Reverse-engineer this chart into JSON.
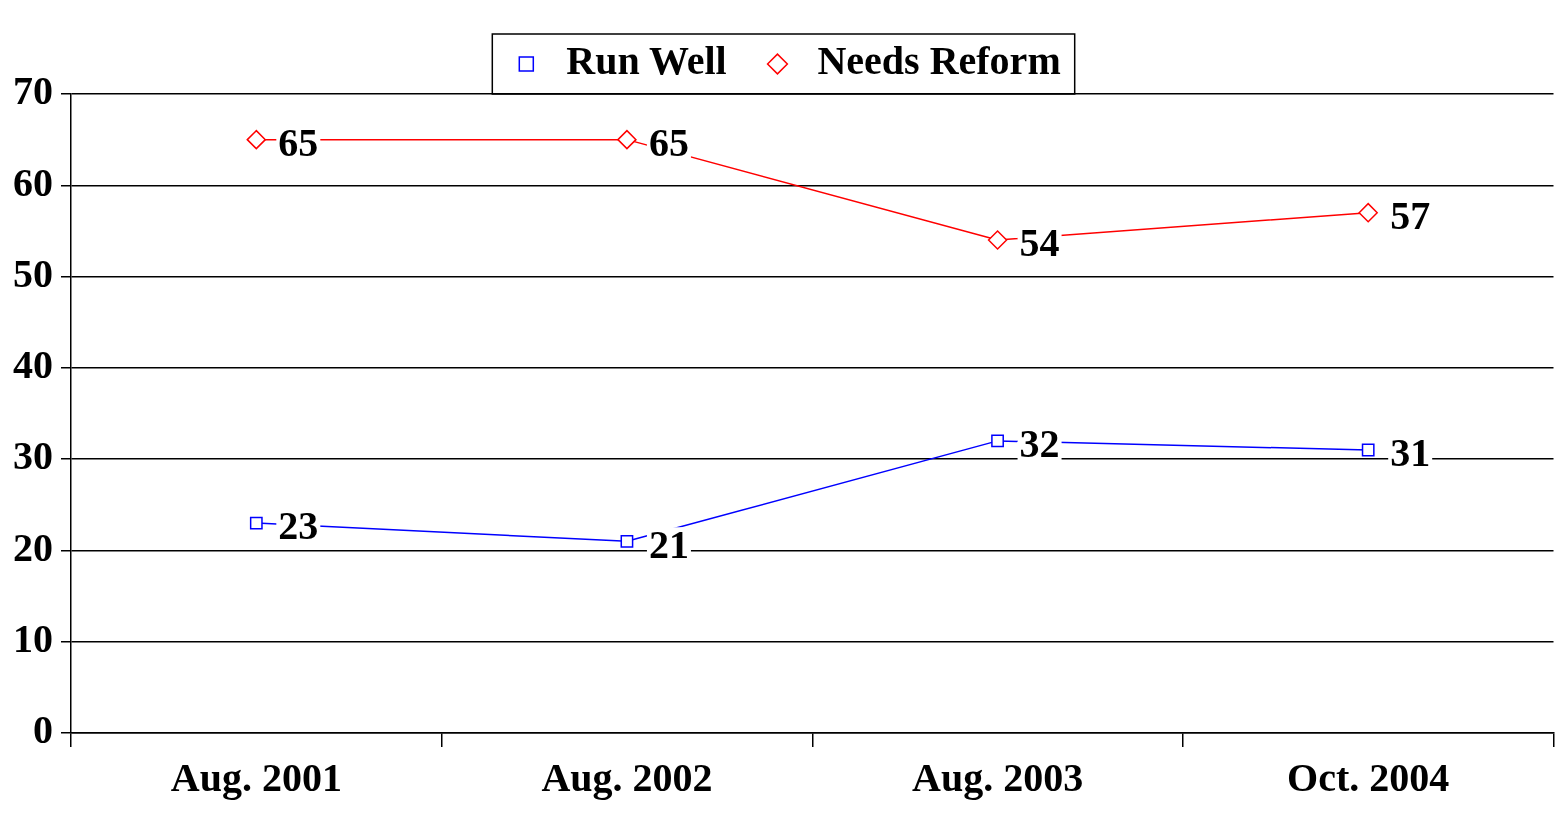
{
  "chart_data": {
    "type": "line",
    "categories": [
      "Aug. 2001",
      "Aug. 2002",
      "Aug. 2003",
      "Oct. 2004"
    ],
    "series": [
      {
        "name": "Run Well",
        "color": "#0000ff",
        "marker": "square",
        "values": [
          23,
          21,
          32,
          31
        ]
      },
      {
        "name": "Needs Reform",
        "color": "#ff0000",
        "marker": "diamond",
        "values": [
          65,
          65,
          54,
          57
        ]
      }
    ],
    "ylim": [
      0,
      70
    ],
    "yticks": [
      0,
      10,
      20,
      30,
      40,
      50,
      60,
      70
    ],
    "grid": "y",
    "legend": "top",
    "data_labels": true
  }
}
